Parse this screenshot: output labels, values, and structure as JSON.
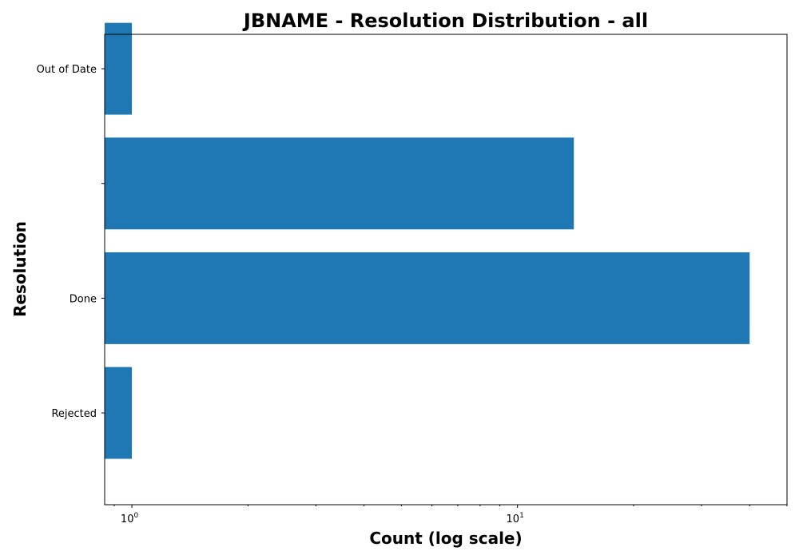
{
  "chart_data": {
    "type": "bar",
    "orientation": "horizontal",
    "title": "JBNAME - Resolution Distribution - all",
    "xlabel": "Count (log scale)",
    "ylabel": "Resolution",
    "x_scale": "log",
    "xlim": [
      0.85,
      50
    ],
    "x_ticks": [
      {
        "value": 1,
        "base": "10",
        "exp": "0"
      },
      {
        "value": 10,
        "base": "10",
        "exp": "1"
      }
    ],
    "categories": [
      "Out of Date",
      "",
      "Done",
      "Rejected"
    ],
    "values": [
      1,
      14,
      40,
      1
    ],
    "bar_color": "#1f77b4",
    "grid": false,
    "legend": "none"
  }
}
